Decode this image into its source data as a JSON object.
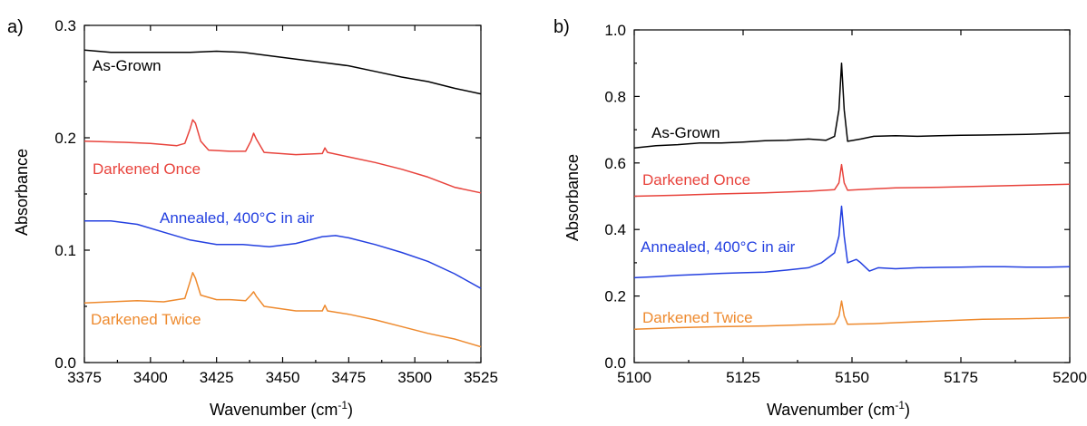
{
  "chart_data": [
    {
      "panel": "a)",
      "type": "line",
      "xlabel": "Wavenumber (cm",
      "xlabel_sup": "-1",
      "xlabel_end": ")",
      "ylabel": "Absorbance",
      "xlim": [
        3375,
        3525
      ],
      "ylim": [
        0.0,
        0.3
      ],
      "xticks": [
        3375,
        3400,
        3425,
        3450,
        3475,
        3500,
        3525
      ],
      "yticks": [
        "0.0",
        "0.1",
        "0.2",
        "0.3"
      ],
      "ytick_values": [
        0.0,
        0.1,
        0.2,
        0.3
      ],
      "grid": false,
      "series": [
        {
          "name": "As-Grown",
          "color": "#000000",
          "points": [
            [
              3375,
              0.278
            ],
            [
              3385,
              0.276
            ],
            [
              3395,
              0.276
            ],
            [
              3405,
              0.276
            ],
            [
              3415,
              0.276
            ],
            [
              3425,
              0.277
            ],
            [
              3435,
              0.276
            ],
            [
              3445,
              0.273
            ],
            [
              3455,
              0.27
            ],
            [
              3465,
              0.267
            ],
            [
              3475,
              0.264
            ],
            [
              3485,
              0.259
            ],
            [
              3495,
              0.254
            ],
            [
              3505,
              0.25
            ],
            [
              3515,
              0.244
            ],
            [
              3525,
              0.239
            ]
          ]
        },
        {
          "name": "Darkened Once",
          "color": "#e8433c",
          "points": [
            [
              3375,
              0.197
            ],
            [
              3390,
              0.196
            ],
            [
              3400,
              0.195
            ],
            [
              3410,
              0.193
            ],
            [
              3413,
              0.195
            ],
            [
              3415,
              0.208
            ],
            [
              3416,
              0.216
            ],
            [
              3417,
              0.213
            ],
            [
              3419,
              0.197
            ],
            [
              3422,
              0.189
            ],
            [
              3430,
              0.188
            ],
            [
              3436,
              0.188
            ],
            [
              3438,
              0.197
            ],
            [
              3439,
              0.204
            ],
            [
              3440,
              0.199
            ],
            [
              3443,
              0.187
            ],
            [
              3455,
              0.185
            ],
            [
              3465,
              0.186
            ],
            [
              3466,
              0.191
            ],
            [
              3467,
              0.187
            ],
            [
              3475,
              0.183
            ],
            [
              3485,
              0.178
            ],
            [
              3495,
              0.172
            ],
            [
              3505,
              0.165
            ],
            [
              3515,
              0.156
            ],
            [
              3525,
              0.151
            ]
          ]
        },
        {
          "name": "Annealed, 400°C in air",
          "color": "#2440e0",
          "points": [
            [
              3375,
              0.126
            ],
            [
              3385,
              0.126
            ],
            [
              3395,
              0.123
            ],
            [
              3405,
              0.116
            ],
            [
              3415,
              0.109
            ],
            [
              3425,
              0.105
            ],
            [
              3435,
              0.105
            ],
            [
              3445,
              0.103
            ],
            [
              3455,
              0.106
            ],
            [
              3465,
              0.112
            ],
            [
              3470,
              0.113
            ],
            [
              3475,
              0.111
            ],
            [
              3485,
              0.105
            ],
            [
              3495,
              0.098
            ],
            [
              3505,
              0.09
            ],
            [
              3515,
              0.079
            ],
            [
              3525,
              0.066
            ]
          ]
        },
        {
          "name": "Darkened Twice",
          "color": "#ee8a2e",
          "points": [
            [
              3375,
              0.053
            ],
            [
              3385,
              0.054
            ],
            [
              3395,
              0.055
            ],
            [
              3405,
              0.054
            ],
            [
              3413,
              0.057
            ],
            [
              3415,
              0.072
            ],
            [
              3416,
              0.08
            ],
            [
              3417,
              0.075
            ],
            [
              3419,
              0.06
            ],
            [
              3425,
              0.056
            ],
            [
              3430,
              0.056
            ],
            [
              3436,
              0.055
            ],
            [
              3438,
              0.06
            ],
            [
              3439,
              0.063
            ],
            [
              3440,
              0.059
            ],
            [
              3443,
              0.05
            ],
            [
              3455,
              0.046
            ],
            [
              3465,
              0.046
            ],
            [
              3466,
              0.051
            ],
            [
              3467,
              0.046
            ],
            [
              3475,
              0.043
            ],
            [
              3485,
              0.038
            ],
            [
              3495,
              0.032
            ],
            [
              3505,
              0.026
            ],
            [
              3515,
              0.021
            ],
            [
              3525,
              0.014
            ]
          ]
        }
      ]
    },
    {
      "panel": "b)",
      "type": "line",
      "xlabel": "Wavenumber (cm",
      "xlabel_sup": "-1",
      "xlabel_end": ")",
      "ylabel": "Absorbance",
      "xlim": [
        5100,
        5200
      ],
      "ylim": [
        0.0,
        1.0
      ],
      "xticks": [
        5100,
        5125,
        5150,
        5175,
        5200
      ],
      "yticks": [
        "0.0",
        "0.2",
        "0.4",
        "0.6",
        "0.8",
        "1.0"
      ],
      "ytick_values": [
        0.0,
        0.2,
        0.4,
        0.6,
        0.8,
        1.0
      ],
      "grid": false,
      "series": [
        {
          "name": "As-Grown",
          "color": "#000000",
          "points": [
            [
              5100,
              0.645
            ],
            [
              5105,
              0.652
            ],
            [
              5110,
              0.655
            ],
            [
              5115,
              0.66
            ],
            [
              5120,
              0.66
            ],
            [
              5125,
              0.663
            ],
            [
              5130,
              0.667
            ],
            [
              5135,
              0.668
            ],
            [
              5140,
              0.672
            ],
            [
              5144,
              0.668
            ],
            [
              5146,
              0.68
            ],
            [
              5147,
              0.76
            ],
            [
              5147.6,
              0.9
            ],
            [
              5148.2,
              0.76
            ],
            [
              5149,
              0.665
            ],
            [
              5152,
              0.672
            ],
            [
              5155,
              0.68
            ],
            [
              5160,
              0.682
            ],
            [
              5165,
              0.68
            ],
            [
              5170,
              0.682
            ],
            [
              5175,
              0.683
            ],
            [
              5180,
              0.684
            ],
            [
              5185,
              0.685
            ],
            [
              5190,
              0.686
            ],
            [
              5195,
              0.688
            ],
            [
              5200,
              0.69
            ]
          ]
        },
        {
          "name": "Darkened Once",
          "color": "#e8433c",
          "points": [
            [
              5100,
              0.5
            ],
            [
              5110,
              0.503
            ],
            [
              5120,
              0.507
            ],
            [
              5130,
              0.51
            ],
            [
              5140,
              0.515
            ],
            [
              5146,
              0.52
            ],
            [
              5147,
              0.54
            ],
            [
              5147.6,
              0.595
            ],
            [
              5148.2,
              0.54
            ],
            [
              5149,
              0.518
            ],
            [
              5155,
              0.522
            ],
            [
              5160,
              0.525
            ],
            [
              5170,
              0.527
            ],
            [
              5180,
              0.53
            ],
            [
              5190,
              0.533
            ],
            [
              5200,
              0.536
            ]
          ]
        },
        {
          "name": "Annealed, 400°C in air",
          "color": "#2440e0",
          "points": [
            [
              5100,
              0.255
            ],
            [
              5105,
              0.258
            ],
            [
              5110,
              0.262
            ],
            [
              5115,
              0.265
            ],
            [
              5120,
              0.268
            ],
            [
              5125,
              0.27
            ],
            [
              5130,
              0.272
            ],
            [
              5135,
              0.278
            ],
            [
              5140,
              0.285
            ],
            [
              5143,
              0.3
            ],
            [
              5145,
              0.32
            ],
            [
              5146,
              0.33
            ],
            [
              5147,
              0.38
            ],
            [
              5147.6,
              0.47
            ],
            [
              5148.2,
              0.38
            ],
            [
              5149,
              0.3
            ],
            [
              5151,
              0.31
            ],
            [
              5152,
              0.3
            ],
            [
              5154,
              0.275
            ],
            [
              5156,
              0.285
            ],
            [
              5160,
              0.282
            ],
            [
              5165,
              0.285
            ],
            [
              5170,
              0.286
            ],
            [
              5175,
              0.287
            ],
            [
              5180,
              0.288
            ],
            [
              5185,
              0.288
            ],
            [
              5190,
              0.287
            ],
            [
              5195,
              0.287
            ],
            [
              5200,
              0.288
            ]
          ]
        },
        {
          "name": "Darkened Twice",
          "color": "#ee8a2e",
          "points": [
            [
              5100,
              0.1
            ],
            [
              5110,
              0.105
            ],
            [
              5120,
              0.108
            ],
            [
              5130,
              0.11
            ],
            [
              5140,
              0.114
            ],
            [
              5146,
              0.116
            ],
            [
              5147,
              0.14
            ],
            [
              5147.6,
              0.185
            ],
            [
              5148.2,
              0.14
            ],
            [
              5149,
              0.115
            ],
            [
              5155,
              0.117
            ],
            [
              5160,
              0.12
            ],
            [
              5170,
              0.125
            ],
            [
              5180,
              0.13
            ],
            [
              5190,
              0.132
            ],
            [
              5200,
              0.135
            ]
          ]
        }
      ]
    }
  ]
}
